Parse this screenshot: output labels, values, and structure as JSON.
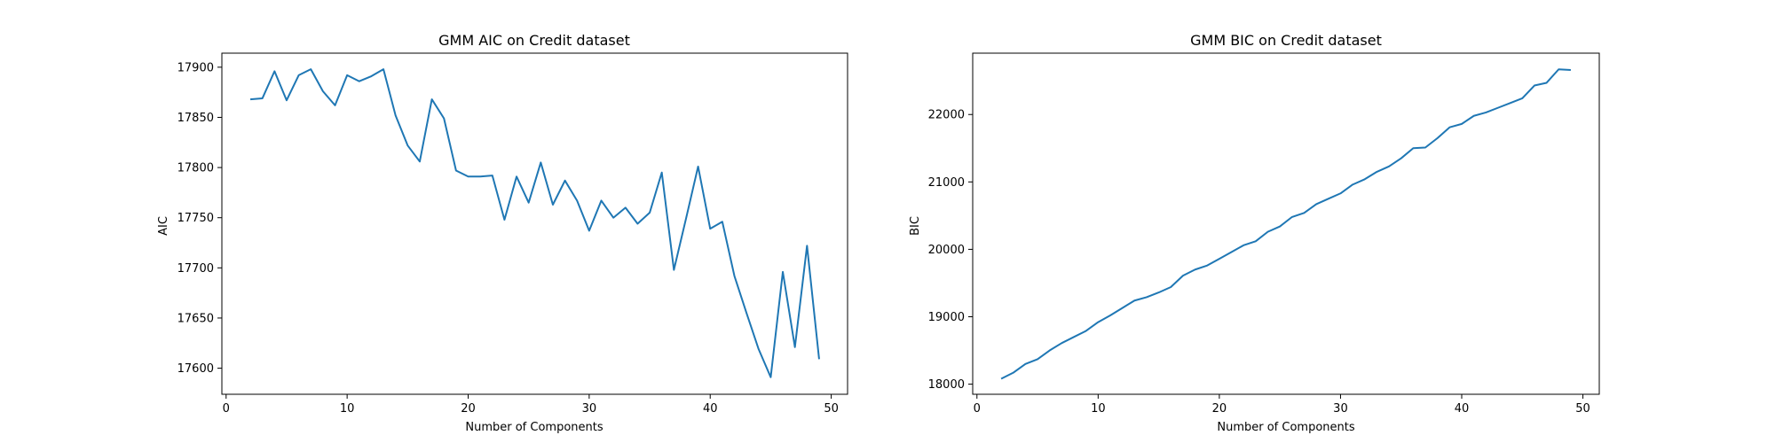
{
  "chart_data": [
    {
      "type": "line",
      "title": "GMM AIC on Credit dataset",
      "xlabel": "Number of Components",
      "ylabel": "AIC",
      "xlim": [
        -0.35,
        51.35
      ],
      "ylim": [
        17574,
        17914
      ],
      "xticks": [
        0,
        10,
        20,
        30,
        40,
        50
      ],
      "yticks": [
        17600,
        17650,
        17700,
        17750,
        17800,
        17850,
        17900
      ],
      "grid": false,
      "series": [
        {
          "color": "#1f77b4",
          "x": [
            2,
            3,
            4,
            5,
            6,
            7,
            8,
            9,
            10,
            11,
            12,
            13,
            14,
            15,
            16,
            17,
            18,
            19,
            20,
            21,
            22,
            23,
            24,
            25,
            26,
            27,
            28,
            29,
            30,
            31,
            32,
            33,
            34,
            35,
            36,
            37,
            38,
            39,
            40,
            41,
            42,
            43,
            44,
            45,
            46,
            47,
            48,
            49
          ],
          "y": [
            17868,
            17869,
            17896,
            17867,
            17892,
            17898,
            17876,
            17862,
            17892,
            17886,
            17891,
            17898,
            17852,
            17822,
            17806,
            17868,
            17849,
            17797,
            17791,
            17791,
            17792,
            17748,
            17791,
            17765,
            17805,
            17763,
            17787,
            17767,
            17737,
            17767,
            17750,
            17760,
            17744,
            17755,
            17795,
            17698,
            17749,
            17801,
            17739,
            17746,
            17692,
            17655,
            17619,
            17591,
            17696,
            17621,
            17722,
            17609
          ]
        }
      ]
    },
    {
      "type": "line",
      "title": "GMM BIC on Credit dataset",
      "xlabel": "Number of Components",
      "ylabel": "BIC",
      "xlim": [
        -0.35,
        51.35
      ],
      "ylim": [
        17850,
        22910
      ],
      "xticks": [
        0,
        10,
        20,
        30,
        40,
        50
      ],
      "yticks": [
        18000,
        19000,
        20000,
        21000,
        22000
      ],
      "grid": false,
      "series": [
        {
          "color": "#1f77b4",
          "x": [
            2,
            3,
            4,
            5,
            6,
            7,
            8,
            9,
            10,
            11,
            12,
            13,
            14,
            15,
            16,
            17,
            18,
            19,
            20,
            21,
            22,
            23,
            24,
            25,
            26,
            27,
            28,
            29,
            30,
            31,
            32,
            33,
            34,
            35,
            36,
            37,
            38,
            39,
            40,
            41,
            42,
            43,
            44,
            45,
            46,
            47,
            48,
            49
          ],
          "y": [
            18080,
            18170,
            18300,
            18370,
            18500,
            18610,
            18700,
            18790,
            18920,
            19020,
            19130,
            19240,
            19290,
            19360,
            19440,
            19610,
            19700,
            19760,
            19860,
            19960,
            20060,
            20120,
            20260,
            20340,
            20480,
            20540,
            20670,
            20750,
            20830,
            20960,
            21040,
            21150,
            21230,
            21350,
            21500,
            21510,
            21650,
            21810,
            21860,
            21980,
            22030,
            22100,
            22170,
            22240,
            22430,
            22470,
            22670,
            22660
          ]
        }
      ]
    }
  ]
}
